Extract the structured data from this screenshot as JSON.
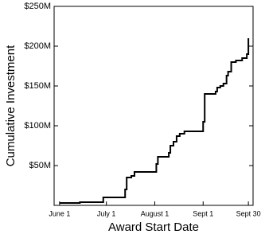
{
  "chart_data": {
    "type": "step",
    "x_label": "Award Start Date",
    "y_label": "Cumulative Investment",
    "color": "#000000",
    "x": [
      0,
      13,
      28,
      42,
      43,
      46,
      48,
      62,
      63,
      70,
      71,
      73,
      75,
      77,
      80,
      92,
      93,
      100,
      101,
      103,
      105,
      107,
      108,
      110,
      113,
      117,
      120,
      121
    ],
    "values": [
      3,
      4,
      10,
      20,
      35,
      37,
      42,
      52,
      61,
      66,
      75,
      80,
      87,
      90,
      93,
      105,
      140,
      143,
      148,
      150,
      153,
      163,
      168,
      180,
      182,
      185,
      190,
      210
    ],
    "xlim": [
      -3.5,
      124
    ],
    "ylim": [
      0,
      250
    ],
    "xticks": [
      {
        "value": 0,
        "label": "June 1"
      },
      {
        "value": 30,
        "label": "July 1"
      },
      {
        "value": 61,
        "label": "August 1"
      },
      {
        "value": 92,
        "label": "Sept 1"
      },
      {
        "value": 121,
        "label": "Sept 30"
      }
    ],
    "yticks": [
      {
        "value": 50,
        "label": "$50M"
      },
      {
        "value": 100,
        "label": "$100M"
      },
      {
        "value": 150,
        "label": "$150M"
      },
      {
        "value": 200,
        "label": "$200M"
      },
      {
        "value": 250,
        "label": "$250M"
      }
    ]
  }
}
